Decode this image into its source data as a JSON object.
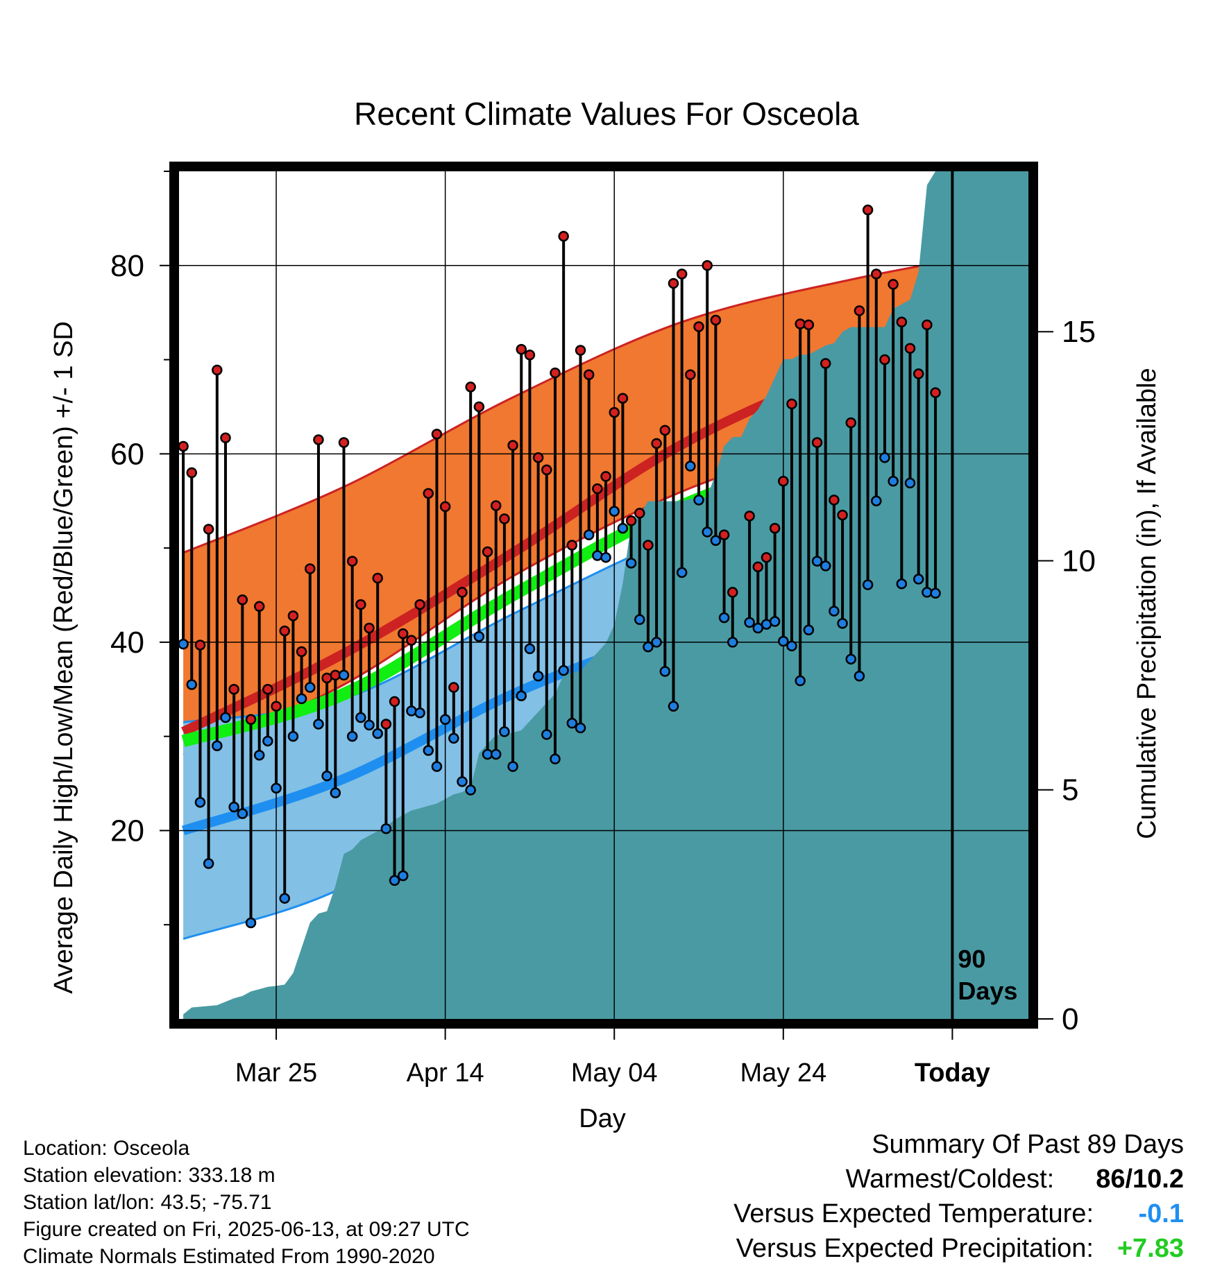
{
  "chart_data": {
    "type": "line",
    "title": "Recent Climate Values For Osceola",
    "xlabel": "Day",
    "ylabel": "Average Daily High/Low/Mean (Red/Blue/Green) +/- 1 SD",
    "y2label": "Cumulative Precipitation (in), If Available",
    "ylim": [
      0,
      90
    ],
    "y_ticks": [
      20,
      40,
      60,
      80
    ],
    "y2lim": [
      0,
      18.5
    ],
    "y2_ticks": [
      0,
      5,
      10,
      15
    ],
    "x_ticks": [
      {
        "day": 12,
        "label": "Mar 25"
      },
      {
        "day": 32,
        "label": "Apr 14"
      },
      {
        "day": 52,
        "label": "May 04"
      },
      {
        "day": 72,
        "label": "May 24"
      },
      {
        "day": 92,
        "label": "Today"
      }
    ],
    "xlim": [
      0.5,
      101
    ],
    "today_marker": {
      "day": 92,
      "label_line1": "90",
      "label_line2": "Days"
    },
    "grid": true,
    "colors": {
      "high_band": "#f07830",
      "high_band_edge": "#cc2222",
      "normal_high": "#cc2222",
      "normal_mean": "#11ee11",
      "low_band": "#82c0e6",
      "low_band_edge": "#1e8ff0",
      "normal_low": "#1e8ff0",
      "precip": "#4a9aa3",
      "high_marker": "#d42020",
      "low_marker": "#1e7ee0"
    },
    "normals_days": [
      1,
      20,
      40,
      60,
      80,
      101
    ],
    "normal_high": [
      30.5,
      38.8,
      49.5,
      61.0,
      69.0,
      75.0
    ],
    "normal_high_upper": [
      49.5,
      56.5,
      66.0,
      74.0,
      78.5,
      82.0
    ],
    "normal_high_lower": [
      28.0,
      35.5,
      47.0,
      56.0,
      62.0,
      68.0
    ],
    "normal_mean": [
      29.5,
      34.5,
      45.0,
      54.5,
      60.5,
      65.5
    ],
    "normal_low": [
      20.0,
      25.5,
      34.5,
      41.5,
      48.5,
      55.5
    ],
    "normal_low_upper": [
      31.5,
      34.0,
      43.0,
      51.5,
      58.0,
      62.5
    ],
    "normal_low_lower": [
      8.5,
      14.0,
      26.0,
      33.0,
      41.5,
      49.5
    ],
    "daily": [
      {
        "day": 1,
        "high": 60.8,
        "low": 39.8
      },
      {
        "day": 2,
        "high": 58.0,
        "low": 35.5
      },
      {
        "day": 3,
        "high": 39.7,
        "low": 23.0
      },
      {
        "day": 4,
        "high": 52.0,
        "low": 16.5
      },
      {
        "day": 5,
        "high": 68.9,
        "low": 29.0
      },
      {
        "day": 6,
        "high": 61.7,
        "low": 32.0
      },
      {
        "day": 7,
        "high": 35.0,
        "low": 22.5
      },
      {
        "day": 8,
        "high": 44.5,
        "low": 21.8
      },
      {
        "day": 9,
        "high": 31.8,
        "low": 10.2
      },
      {
        "day": 10,
        "high": 43.8,
        "low": 28.0
      },
      {
        "day": 11,
        "high": 35.0,
        "low": 29.5
      },
      {
        "day": 12,
        "high": 33.2,
        "low": 24.5
      },
      {
        "day": 13,
        "high": 41.2,
        "low": 12.8
      },
      {
        "day": 14,
        "high": 42.8,
        "low": 30.0
      },
      {
        "day": 15,
        "high": 39.0,
        "low": 34.0
      },
      {
        "day": 16,
        "high": 47.8,
        "low": 35.2
      },
      {
        "day": 17,
        "high": 61.5,
        "low": 31.3
      },
      {
        "day": 18,
        "high": 36.2,
        "low": 25.8
      },
      {
        "day": 19,
        "high": 36.5,
        "low": 24.0
      },
      {
        "day": 20,
        "high": 61.2,
        "low": 36.5
      },
      {
        "day": 21,
        "high": 48.6,
        "low": 30.0
      },
      {
        "day": 22,
        "high": 44.0,
        "low": 32.0
      },
      {
        "day": 23,
        "high": 41.5,
        "low": 31.2
      },
      {
        "day": 24,
        "high": 46.8,
        "low": 30.3
      },
      {
        "day": 25,
        "high": 31.3,
        "low": 20.2
      },
      {
        "day": 26,
        "high": 33.7,
        "low": 14.7
      },
      {
        "day": 27,
        "high": 40.9,
        "low": 15.2
      },
      {
        "day": 28,
        "high": 40.2,
        "low": 32.7
      },
      {
        "day": 29,
        "high": 44.0,
        "low": 32.5
      },
      {
        "day": 30,
        "high": 55.8,
        "low": 28.5
      },
      {
        "day": 31,
        "high": 62.1,
        "low": 26.8
      },
      {
        "day": 32,
        "high": 54.4,
        "low": 31.8
      },
      {
        "day": 33,
        "high": 35.2,
        "low": 29.8
      },
      {
        "day": 34,
        "high": 45.3,
        "low": 25.2
      },
      {
        "day": 35,
        "high": 67.1,
        "low": 24.3
      },
      {
        "day": 36,
        "high": 65.0,
        "low": 40.6
      },
      {
        "day": 37,
        "high": 49.6,
        "low": 28.1
      },
      {
        "day": 38,
        "high": 54.5,
        "low": 28.1
      },
      {
        "day": 39,
        "high": 53.1,
        "low": 30.5
      },
      {
        "day": 40,
        "high": 60.9,
        "low": 26.8
      },
      {
        "day": 41,
        "high": 71.1,
        "low": 34.3
      },
      {
        "day": 42,
        "high": 70.5,
        "low": 39.3
      },
      {
        "day": 43,
        "high": 59.6,
        "low": 36.4
      },
      {
        "day": 44,
        "high": 58.3,
        "low": 30.2
      },
      {
        "day": 45,
        "high": 68.6,
        "low": 27.6
      },
      {
        "day": 46,
        "high": 83.1,
        "low": 37.0
      },
      {
        "day": 47,
        "high": 50.3,
        "low": 31.4
      },
      {
        "day": 48,
        "high": 71.0,
        "low": 30.9
      },
      {
        "day": 49,
        "high": 68.4,
        "low": 51.4
      },
      {
        "day": 50,
        "high": 56.3,
        "low": 49.2
      },
      {
        "day": 51,
        "high": 57.6,
        "low": 49.0
      },
      {
        "day": 52,
        "high": 64.4,
        "low": 53.9
      },
      {
        "day": 53,
        "high": 65.9,
        "low": 52.1
      },
      {
        "day": 54,
        "high": 52.9,
        "low": 48.4
      },
      {
        "day": 55,
        "high": 53.7,
        "low": 42.4
      },
      {
        "day": 56,
        "high": 50.3,
        "low": 39.5
      },
      {
        "day": 57,
        "high": 61.1,
        "low": 40.0
      },
      {
        "day": 58,
        "high": 62.5,
        "low": 36.9
      },
      {
        "day": 59,
        "high": 78.1,
        "low": 33.2
      },
      {
        "day": 60,
        "high": 79.1,
        "low": 47.4
      },
      {
        "day": 61,
        "high": 68.4,
        "low": 58.7
      },
      {
        "day": 62,
        "high": 73.5,
        "low": 55.1
      },
      {
        "day": 63,
        "high": 80.0,
        "low": 51.7
      },
      {
        "day": 64,
        "high": 74.2,
        "low": 50.8
      },
      {
        "day": 65,
        "high": 51.4,
        "low": 42.6
      },
      {
        "day": 66,
        "high": 45.3,
        "low": 40.0
      },
      {
        "day": 68,
        "high": 53.4,
        "low": 42.1
      },
      {
        "day": 69,
        "high": 48.0,
        "low": 41.5
      },
      {
        "day": 70,
        "high": 49.0,
        "low": 41.9
      },
      {
        "day": 71,
        "high": 52.1,
        "low": 42.2
      },
      {
        "day": 72,
        "high": 57.1,
        "low": 40.1
      },
      {
        "day": 73,
        "high": 65.3,
        "low": 39.6
      },
      {
        "day": 74,
        "high": 73.8,
        "low": 35.9
      },
      {
        "day": 75,
        "high": 73.7,
        "low": 41.3
      },
      {
        "day": 76,
        "high": 61.2,
        "low": 48.6
      },
      {
        "day": 77,
        "high": 69.6,
        "low": 48.1
      },
      {
        "day": 78,
        "high": 55.1,
        "low": 43.3
      },
      {
        "day": 79,
        "high": 53.5,
        "low": 42.0
      },
      {
        "day": 80,
        "high": 63.3,
        "low": 38.2
      },
      {
        "day": 81,
        "high": 75.2,
        "low": 36.4
      },
      {
        "day": 82,
        "high": 85.9,
        "low": 46.1
      },
      {
        "day": 83,
        "high": 79.1,
        "low": 55.0
      },
      {
        "day": 84,
        "high": 70.0,
        "low": 59.6
      },
      {
        "day": 85,
        "high": 78.0,
        "low": 57.1
      },
      {
        "day": 86,
        "high": 74.0,
        "low": 46.2
      },
      {
        "day": 87,
        "high": 71.2,
        "low": 56.9
      },
      {
        "day": 88,
        "high": 68.5,
        "low": 46.7
      },
      {
        "day": 89,
        "high": 73.7,
        "low": 45.3
      },
      {
        "day": 90,
        "high": 66.5,
        "low": 45.2
      }
    ],
    "precip_days": [
      1,
      2,
      5,
      7,
      8,
      9,
      10,
      11,
      12,
      13,
      14,
      15,
      16,
      17,
      18,
      19,
      20,
      21,
      22,
      23,
      24,
      25,
      26,
      27,
      28,
      29,
      30,
      31,
      32,
      33,
      34,
      35,
      36,
      37,
      38,
      39,
      40,
      41,
      42,
      43,
      44,
      45,
      46,
      47,
      48,
      49,
      50,
      51,
      52,
      53,
      54,
      55,
      56,
      57,
      58,
      59,
      60,
      61,
      62,
      63,
      64,
      65,
      66,
      67,
      68,
      69,
      70,
      71,
      72,
      73,
      74,
      75,
      76,
      77,
      78,
      79,
      80,
      81,
      82,
      83,
      84,
      85,
      86,
      87,
      88,
      89,
      90,
      91,
      92,
      101
    ],
    "precip_cum": [
      0.1,
      0.25,
      0.3,
      0.45,
      0.5,
      0.6,
      0.65,
      0.7,
      0.72,
      0.75,
      1.0,
      1.55,
      2.1,
      2.3,
      2.35,
      2.9,
      3.6,
      3.7,
      3.9,
      4.0,
      4.1,
      4.2,
      4.35,
      4.45,
      4.55,
      4.6,
      4.65,
      4.7,
      4.8,
      4.9,
      4.95,
      5.05,
      5.8,
      6.0,
      6.2,
      6.2,
      6.25,
      6.3,
      6.5,
      6.7,
      6.9,
      7.1,
      7.5,
      7.55,
      7.6,
      7.8,
      8.0,
      8.2,
      8.6,
      9.5,
      10.8,
      11.0,
      11.3,
      11.3,
      11.3,
      11.3,
      11.3,
      11.35,
      11.35,
      11.4,
      11.9,
      12.5,
      12.7,
      12.7,
      13.1,
      13.3,
      13.6,
      14.0,
      14.4,
      14.4,
      14.5,
      14.5,
      14.6,
      14.7,
      14.75,
      15.0,
      15.1,
      15.1,
      15.1,
      15.1,
      15.1,
      15.5,
      15.6,
      15.7,
      16.3,
      18.2,
      18.5,
      18.5,
      18.5,
      18.5
    ]
  },
  "info": {
    "location": "Location: Osceola",
    "elevation": "Station elevation: 333.18 m",
    "latlon": "Station lat/lon: 43.5; -75.71",
    "created": "Figure created on Fri, 2025-06-13, at 09:27 UTC",
    "normals": "Climate Normals Estimated From 1990-2020"
  },
  "summary": {
    "title": "Summary Of Past 89 Days",
    "warm_cold_label": "Warmest/Coldest:",
    "warm_cold_value": "86/10.2",
    "temp_label": "Versus Expected Temperature:",
    "temp_value": "-0.1",
    "temp_color": "#1e8ff0",
    "precip_label": "Versus Expected Precipitation:",
    "precip_value": "+7.83",
    "precip_color": "#22cc22"
  }
}
